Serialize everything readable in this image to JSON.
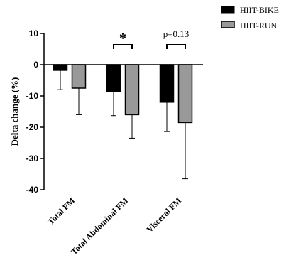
{
  "chart_data": {
    "type": "bar",
    "ylabel": "Delta change (%)",
    "ylim": [
      -40,
      10
    ],
    "yticks": [
      10,
      0,
      -10,
      -20,
      -30,
      -40
    ],
    "categories": [
      "Total FM",
      "Total Abdominal FM",
      "Visceral FM"
    ],
    "series": [
      {
        "name": "HIIT-BIKE",
        "color": "#000000",
        "values": [
          -1.8,
          -8.5,
          -12.0
        ],
        "error": [
          6.2,
          7.8,
          9.4
        ]
      },
      {
        "name": "HIIT-RUN",
        "color": "#999999",
        "values": [
          -7.5,
          -16.0,
          -18.5
        ],
        "error": [
          8.5,
          7.5,
          18.0
        ]
      }
    ],
    "annotations": [
      {
        "category_index": 1,
        "text": "*"
      },
      {
        "category_index": 2,
        "text": "p=0.13"
      }
    ],
    "legend_position": "top-right"
  }
}
